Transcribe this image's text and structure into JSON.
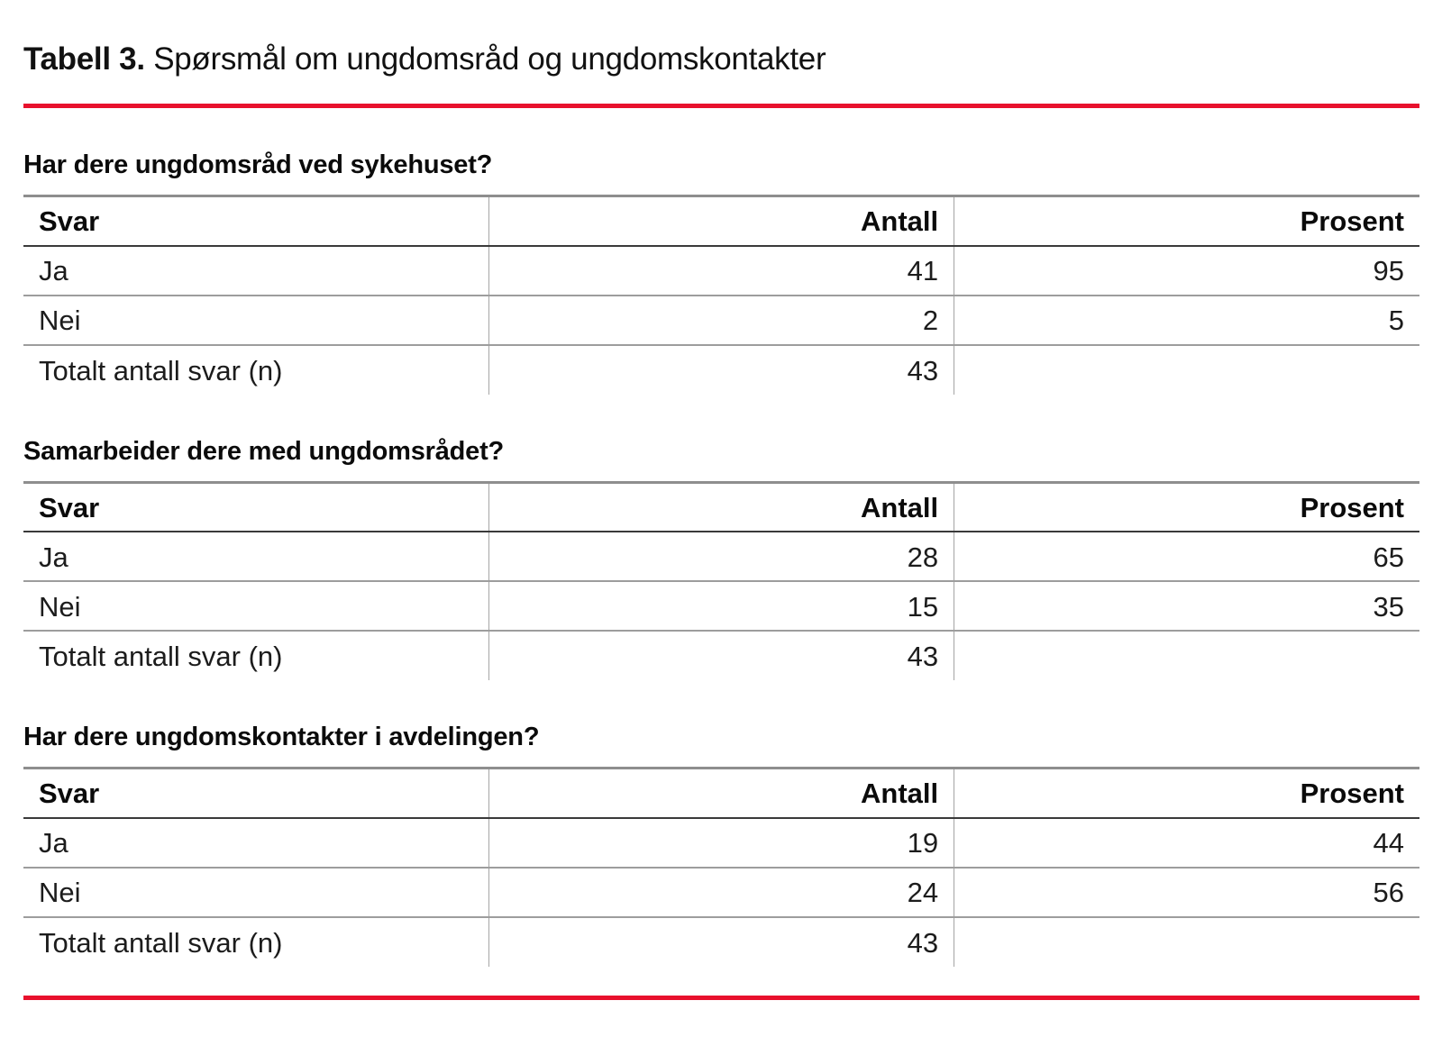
{
  "page_title": {
    "bold": "Tabell 3.",
    "rest": "Spørsmål om ungdomsråd og ungdomskontakter"
  },
  "accent_color": "#e8112d",
  "columns": {
    "svar": "Svar",
    "antall": "Antall",
    "prosent": "Prosent"
  },
  "sections": [
    {
      "question": "Har dere ungdomsråd ved sykehuset?",
      "rows": [
        {
          "label": "Ja",
          "antall": "41",
          "prosent": "95"
        },
        {
          "label": "Nei",
          "antall": "2",
          "prosent": "5"
        },
        {
          "label": "Totalt antall svar (n)",
          "antall": "43",
          "prosent": ""
        }
      ]
    },
    {
      "question": "Samarbeider dere med ungdomsrådet?",
      "rows": [
        {
          "label": "Ja",
          "antall": "28",
          "prosent": "65"
        },
        {
          "label": "Nei",
          "antall": "15",
          "prosent": "35"
        },
        {
          "label": "Totalt antall svar (n)",
          "antall": "43",
          "prosent": ""
        }
      ]
    },
    {
      "question": "Har dere ungdomskontakter i avdelingen?",
      "rows": [
        {
          "label": "Ja",
          "antall": "19",
          "prosent": "44"
        },
        {
          "label": "Nei",
          "antall": "24",
          "prosent": "56"
        },
        {
          "label": "Totalt antall svar (n)",
          "antall": "43",
          "prosent": ""
        }
      ]
    }
  ]
}
